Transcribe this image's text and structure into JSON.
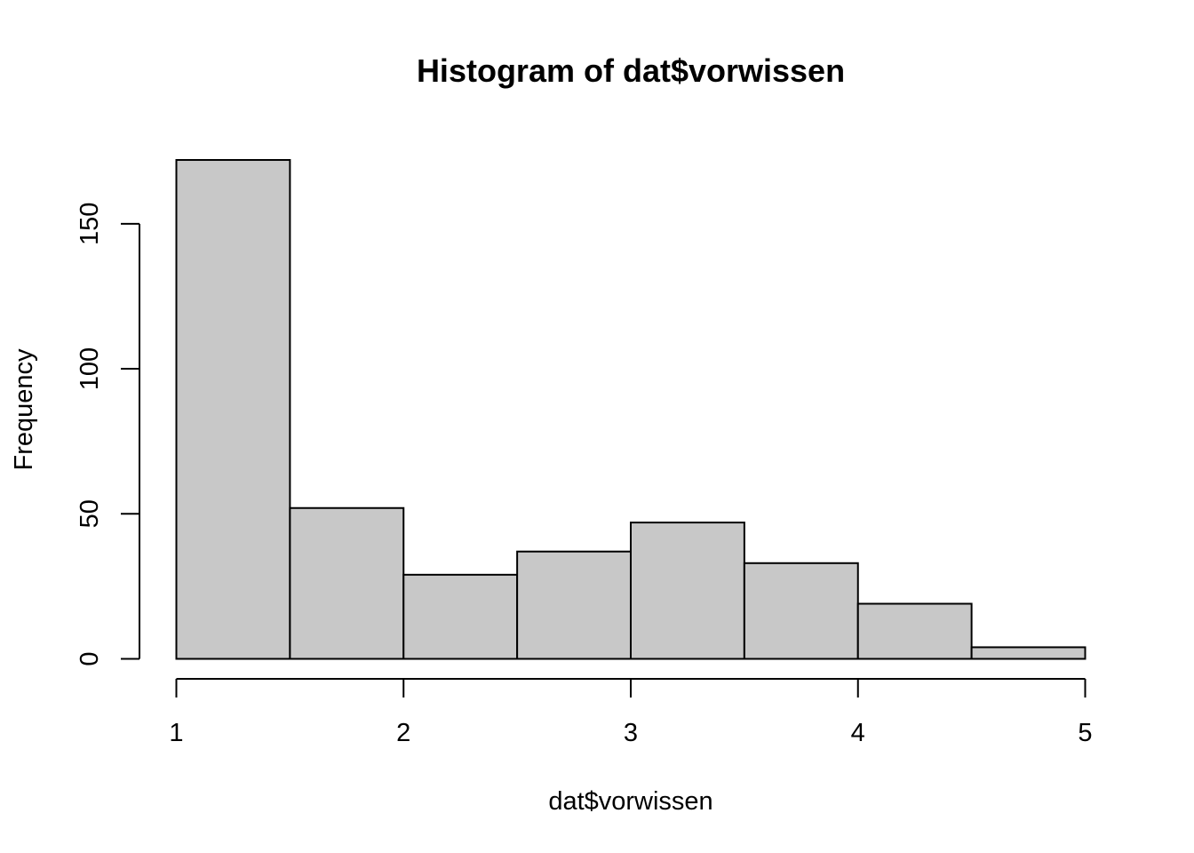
{
  "chart_data": {
    "type": "bar",
    "title": "Histogram of dat$vorwissen",
    "xlabel": "dat$vorwissen",
    "ylabel": "Frequency",
    "bins": [
      {
        "start": 1.0,
        "end": 1.5,
        "count": 172
      },
      {
        "start": 1.5,
        "end": 2.0,
        "count": 52
      },
      {
        "start": 2.0,
        "end": 2.5,
        "count": 29
      },
      {
        "start": 2.5,
        "end": 3.0,
        "count": 37
      },
      {
        "start": 3.0,
        "end": 3.5,
        "count": 47
      },
      {
        "start": 3.5,
        "end": 4.0,
        "count": 33
      },
      {
        "start": 4.0,
        "end": 4.5,
        "count": 19
      },
      {
        "start": 4.5,
        "end": 5.0,
        "count": 4
      }
    ],
    "x_ticks": [
      1,
      2,
      3,
      4,
      5
    ],
    "y_ticks": [
      0,
      50,
      100,
      150
    ],
    "xlim": [
      1,
      5
    ],
    "ylim": [
      0,
      172
    ],
    "bar_fill": "#c8c8c8",
    "bar_stroke": "#000000",
    "grid": false,
    "legend": "none"
  }
}
